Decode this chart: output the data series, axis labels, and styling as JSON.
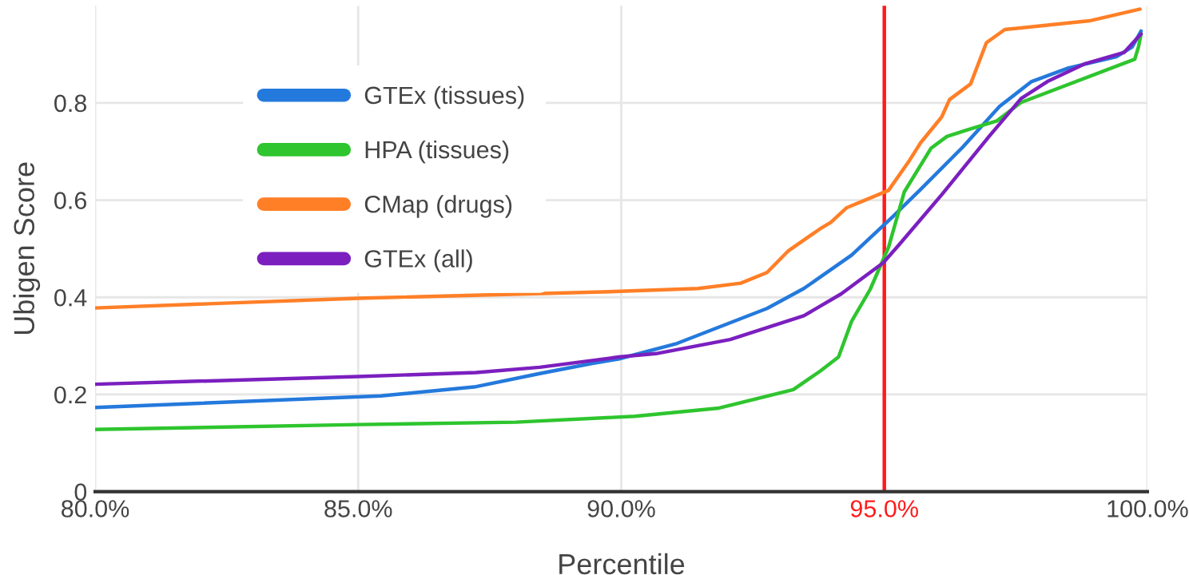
{
  "chart_data": {
    "type": "line",
    "xlabel": "Percentile",
    "ylabel": "Ubigen Score",
    "xlim": [
      80,
      100
    ],
    "ylim": [
      0,
      1
    ],
    "xticks": [
      {
        "value": 80,
        "label": "80.0%"
      },
      {
        "value": 85,
        "label": "85.0%"
      },
      {
        "value": 90,
        "label": "90.0%"
      },
      {
        "value": 95,
        "label": "95.0%"
      },
      {
        "value": 100,
        "label": "100.0%"
      }
    ],
    "yticks": [
      0,
      0.2,
      0.4,
      0.6,
      0.8
    ],
    "grid": true,
    "legend": "top left",
    "marker": "none",
    "line_style": "solid",
    "ref_lines": [
      {
        "axis": "x",
        "value": 95,
        "color": "#ff1a1a"
      }
    ],
    "series": [
      {
        "name": "GTEx (tissues)",
        "color": "#2479dc",
        "x": [
          80,
          85.43,
          87.24,
          88.45,
          89.45,
          89.95,
          91.06,
          92.77,
          93.47,
          94.38,
          95.18,
          95.69,
          96.49,
          97.19,
          97.8,
          98.5,
          99.41,
          99.71,
          99.88
        ],
        "values": [
          0.173,
          0.197,
          0.216,
          0.243,
          0.264,
          0.273,
          0.305,
          0.377,
          0.418,
          0.487,
          0.568,
          0.622,
          0.709,
          0.793,
          0.844,
          0.872,
          0.895,
          0.915,
          0.948
        ]
      },
      {
        "name": "HPA (tissues)",
        "color": "#2ec52e",
        "x": [
          80,
          85,
          88,
          90.26,
          91.86,
          93.27,
          93.78,
          94.13,
          94.38,
          94.73,
          95.08,
          95.38,
          95.89,
          96.19,
          96.59,
          97.14,
          97.6,
          99.76,
          99.83,
          99.88
        ],
        "values": [
          0.128,
          0.138,
          0.143,
          0.155,
          0.172,
          0.21,
          0.248,
          0.277,
          0.351,
          0.416,
          0.503,
          0.617,
          0.707,
          0.731,
          0.745,
          0.763,
          0.801,
          0.89,
          0.915,
          0.942
        ]
      },
      {
        "name": "CMap (drugs)",
        "color": "#ff7f27",
        "x": [
          80,
          85,
          89.65,
          91.46,
          92.27,
          92.77,
          93.17,
          93.78,
          93.98,
          94.28,
          95.08,
          95.48,
          95.69,
          96.09,
          96.24,
          96.64,
          96.94,
          97.29,
          98.9,
          99.86
        ],
        "values": [
          0.378,
          0.398,
          0.411,
          0.418,
          0.429,
          0.451,
          0.495,
          0.541,
          0.554,
          0.584,
          0.62,
          0.682,
          0.718,
          0.771,
          0.807,
          0.839,
          0.924,
          0.951,
          0.969,
          0.993
        ]
      },
      {
        "name": "GTEx (all)",
        "color": "#7b1fbf",
        "x": [
          80,
          85,
          87.24,
          88.45,
          89.45,
          89.95,
          90.66,
          92.07,
          93.47,
          94.18,
          94.98,
          95.28,
          96.09,
          96.99,
          97.6,
          98.1,
          98.8,
          99.56,
          99.88
        ],
        "values": [
          0.221,
          0.237,
          0.245,
          0.256,
          0.27,
          0.277,
          0.284,
          0.313,
          0.362,
          0.407,
          0.471,
          0.508,
          0.611,
          0.731,
          0.809,
          0.844,
          0.88,
          0.904,
          0.942
        ]
      }
    ]
  }
}
